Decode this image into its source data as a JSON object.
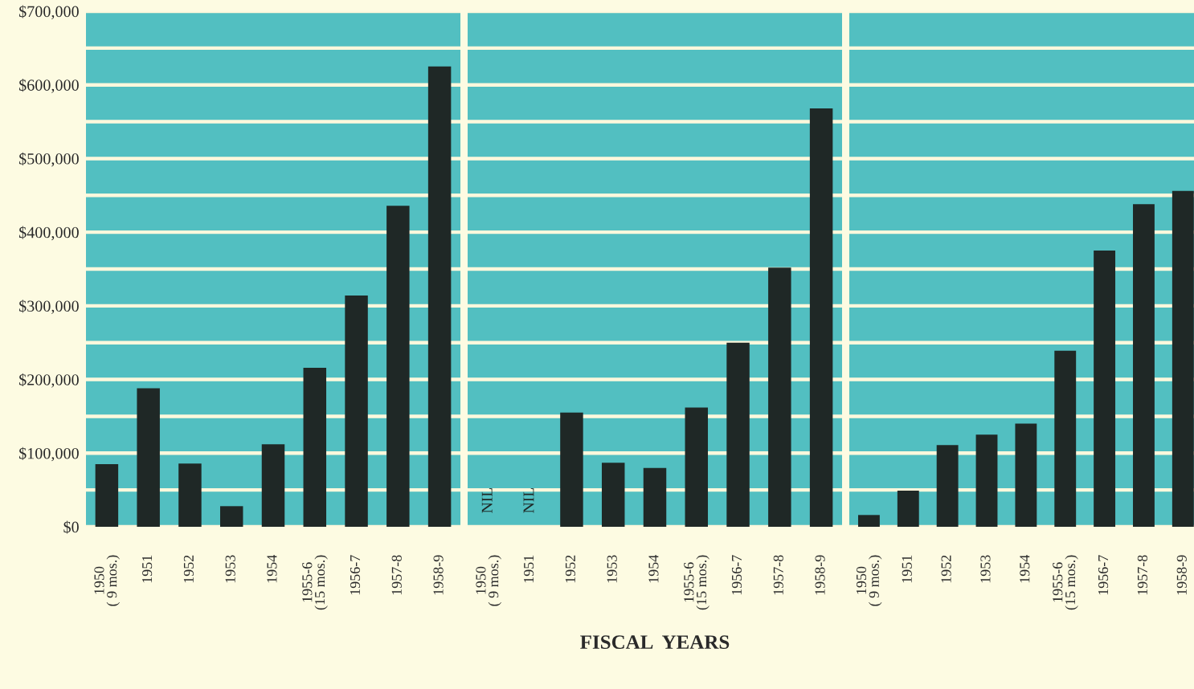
{
  "chart_data": [
    {
      "type": "bar",
      "categories": [
        "1950\n( 9 mos.)",
        "1951",
        "1952",
        "1953",
        "1954",
        "1955-6\n(15 mos.)",
        "1956-7",
        "1957-8",
        "1958-9"
      ],
      "values": [
        85000,
        188000,
        86000,
        28000,
        112000,
        216000,
        314000,
        436000,
        625000
      ],
      "color": "#1f2826",
      "ylim": [
        0,
        700000
      ],
      "yticks": [
        {
          "value": 0,
          "label": "$0"
        },
        {
          "value": 50000,
          "label": null
        },
        {
          "value": 100000,
          "label": "$100,000"
        },
        {
          "value": 150000,
          "label": null
        },
        {
          "value": 200000,
          "label": "$200,000"
        },
        {
          "value": 250000,
          "label": null
        },
        {
          "value": 300000,
          "label": "$300,000"
        },
        {
          "value": 350000,
          "label": null
        },
        {
          "value": 400000,
          "label": "$400,000"
        },
        {
          "value": 450000,
          "label": null
        },
        {
          "value": 500000,
          "label": "$500,000"
        },
        {
          "value": 550000,
          "label": null
        },
        {
          "value": 600000,
          "label": "$600,000"
        },
        {
          "value": 650000,
          "label": null
        },
        {
          "value": 700000,
          "label": "$700,000"
        }
      ],
      "grid": "y"
    },
    {
      "type": "bar",
      "xlabel": "FISCAL  YEARS",
      "categories": [
        "1950\n( 9 mos.)",
        "1951",
        "1952",
        "1953",
        "1954",
        "1955-6\n(15 mos.)",
        "1956-7",
        "1957-8",
        "1958-9"
      ],
      "values": [
        null,
        null,
        155000,
        87000,
        80000,
        162000,
        250000,
        352000,
        568000
      ],
      "color": "#1f2826",
      "ylim": [
        0,
        700000
      ],
      "yticks": [
        0,
        50000,
        100000,
        150000,
        200000,
        250000,
        300000,
        350000,
        400000,
        450000,
        500000,
        550000,
        600000,
        650000,
        700000
      ],
      "grid": "y",
      "tick_labels": "x",
      "annotations": [
        "NIL",
        "NIL"
      ]
    },
    {
      "type": "bar",
      "categories": [
        "1950\n( 9 mos.)",
        "1951",
        "1952",
        "1953",
        "1954",
        "1955-6\n(15 mos.)",
        "1956-7",
        "1957-8",
        "1958-9"
      ],
      "values": [
        16000,
        49000,
        111000,
        125000,
        140000,
        239000,
        375000,
        438000,
        456000
      ],
      "color": "#1f2826",
      "ylim": [
        0,
        700000
      ],
      "yticks": [
        0,
        50000,
        100000,
        150000,
        200000,
        250000,
        300000,
        350000,
        400000,
        450000,
        500000,
        550000,
        600000,
        650000,
        700000
      ],
      "grid": "y",
      "tick_labels": "x"
    }
  ]
}
